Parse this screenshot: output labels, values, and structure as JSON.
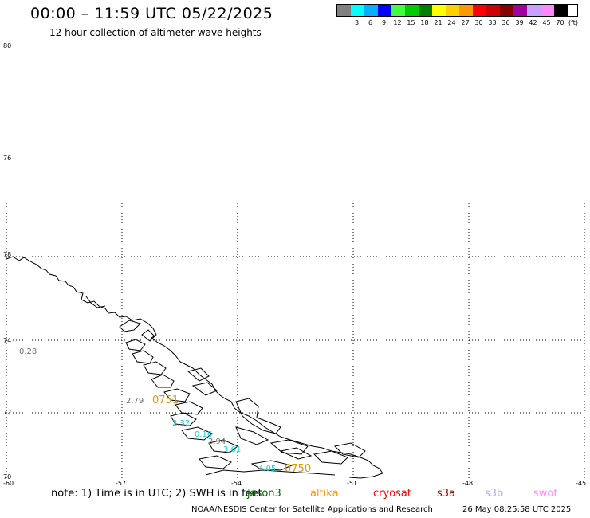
{
  "header": {
    "title": "00:00 – 11:59 UTC 05/22/2025",
    "subtitle": "12 hour collection of altimeter wave heights"
  },
  "legend": {
    "colors": [
      "#808080",
      "#00ffff",
      "#00b0ff",
      "#0000ff",
      "#40ff40",
      "#00cc00",
      "#008000",
      "#ffff00",
      "#ffd000",
      "#ff9900",
      "#ff0000",
      "#cc0000",
      "#880000",
      "#a000a0",
      "#c8a0ff",
      "#ff88ff",
      "#000000"
    ],
    "labels": [
      "",
      "3",
      "6",
      "9",
      "12",
      "15",
      "18",
      "21",
      "24",
      "27",
      "30",
      "33",
      "36",
      "39",
      "42",
      "45",
      "70"
    ],
    "unit": "(ft)"
  },
  "map": {
    "lat_labels": [
      "80",
      "76",
      "78",
      "74",
      "72",
      "70"
    ],
    "lon_labels": [
      "-60",
      "-57",
      "-54",
      "-51",
      "-48",
      "-45"
    ],
    "observations": [
      {
        "value": "0.28",
        "color": "#707070"
      },
      {
        "value": "2.79",
        "color": "#707070"
      },
      {
        "value": "0751",
        "color": "#e69500"
      },
      {
        "value": "2.32",
        "color": "#00d8d8"
      },
      {
        "value": "0.16",
        "color": "#00d8d8"
      },
      {
        "value": "2.94",
        "color": "#707070"
      },
      {
        "value": "3.61",
        "color": "#00d8d8"
      },
      {
        "value": "4.05",
        "color": "#00d8d8"
      },
      {
        "value": "0750",
        "color": "#e69500"
      }
    ]
  },
  "footer": {
    "note": "note:  1) Time is in UTC;  2) SWH is in feet",
    "satellites": [
      {
        "name": "jason3",
        "color": "#006400"
      },
      {
        "name": "altika",
        "color": "#ff9900"
      },
      {
        "name": "cryosat",
        "color": "#ff0000"
      },
      {
        "name": "s3a",
        "color": "#aa0000"
      },
      {
        "name": "s3b",
        "color": "#c8a0ff"
      },
      {
        "name": "swot",
        "color": "#ff88ff"
      }
    ],
    "credit": "NOAA/NESDIS Center for Satellite Applications and Research",
    "timestamp": "26 May 08:25:58 UTC 2025"
  }
}
